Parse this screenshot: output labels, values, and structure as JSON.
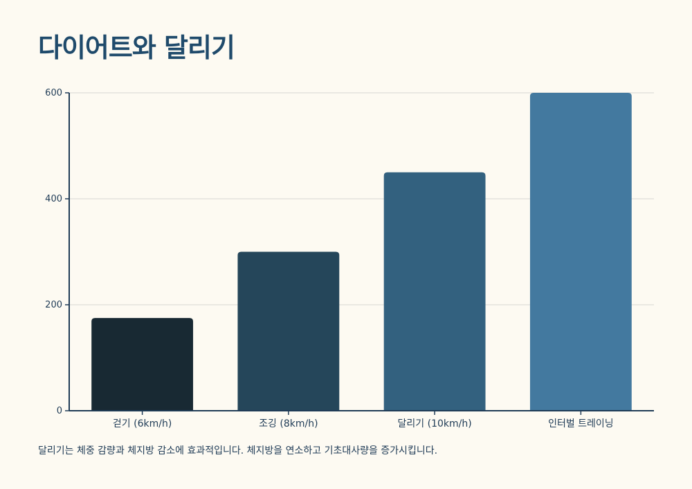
{
  "title": "다이어트와 달리기",
  "caption": "달리기는 체중 감량과 체지방 감소에 효과적입니다. 체지방을 연소하고 기초대사량을 증가시킵니다.",
  "chart_data": {
    "type": "bar",
    "categories": [
      "걷기 (6km/h)",
      "조깅 (8km/h)",
      "달리기 (10km/h)",
      "인터벌 트레이닝"
    ],
    "values": [
      175,
      300,
      450,
      600
    ],
    "colors": [
      "#182933",
      "#25465a",
      "#33617f",
      "#43799f"
    ],
    "ylim": [
      0,
      600
    ],
    "yticks": [
      "0",
      "200",
      "400",
      "600"
    ],
    "ytick_values": [
      0,
      200,
      400,
      600
    ],
    "grid": true,
    "title": "다이어트와 달리기",
    "xlabel": "",
    "ylabel": ""
  }
}
